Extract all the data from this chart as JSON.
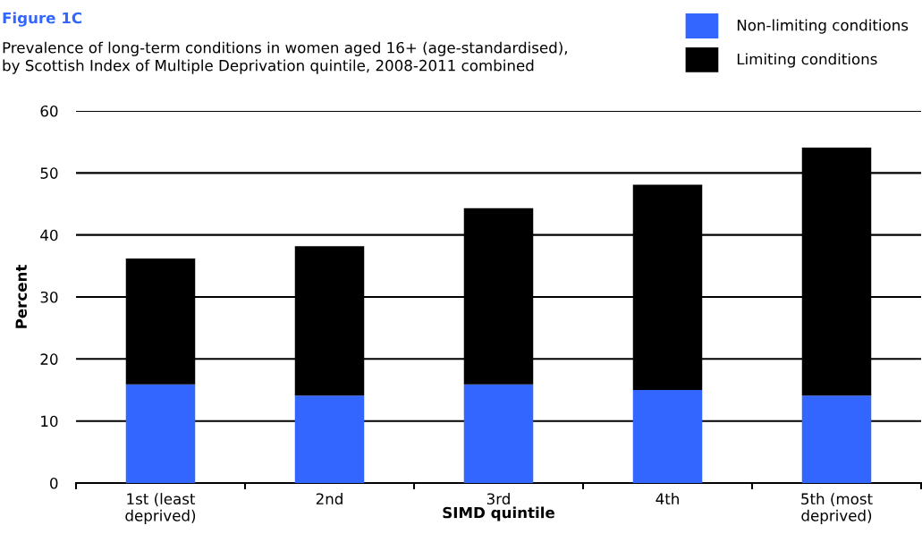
{
  "chart_data": {
    "type": "bar",
    "stacked": true,
    "title": "Figure 1C",
    "subtitle": "Prevalence of long-term conditions in women aged 16+ (age-standardised),\nby Scottish Index of Multiple Deprivation quintile, 2008-2011 combined",
    "xlabel": "SIMD quintile",
    "ylabel": "Percent",
    "categories": [
      "1st (least\ndeprived)",
      "2nd",
      "3rd",
      "4th",
      "5th (most\ndeprived)"
    ],
    "series": [
      {
        "name": "Non-limiting conditions",
        "color": "#3366ff",
        "values": [
          15.9,
          14.1,
          15.9,
          15.0,
          14.1
        ]
      },
      {
        "name": "Limiting conditions",
        "color": "#000000",
        "values": [
          20.3,
          24.1,
          28.4,
          33.1,
          40.0
        ]
      }
    ],
    "ylim": [
      0,
      60
    ],
    "yticks": [
      0,
      10,
      20,
      30,
      40,
      50,
      60
    ],
    "grid": "y",
    "legend": "top right"
  }
}
